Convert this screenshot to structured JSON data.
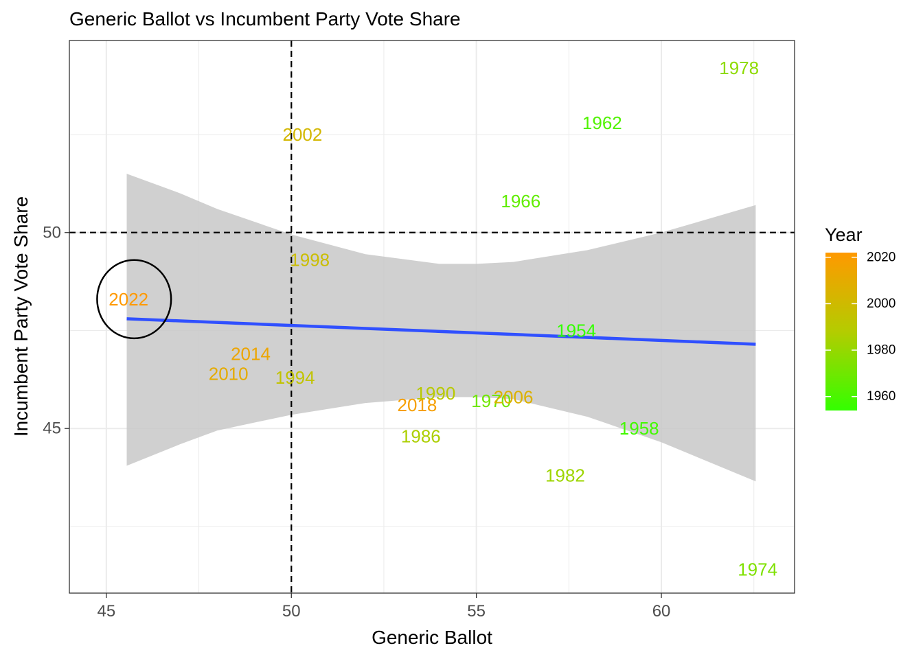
{
  "chart_data": {
    "type": "scatter",
    "title": "Generic Ballot vs Incumbent Party Vote Share",
    "xlabel": "Generic Ballot",
    "ylabel": "Incumbent Party Vote Share",
    "xlim": [
      44,
      63.6
    ],
    "ylim": [
      40.8,
      54.9
    ],
    "x_ticks": [
      45,
      50,
      55,
      60
    ],
    "y_ticks": [
      45,
      50
    ],
    "grid": true,
    "reference_lines": {
      "x": 50,
      "y": 50,
      "style": "dashed"
    },
    "points": [
      {
        "label": "2022",
        "x": 45.6,
        "y": 48.3,
        "year": 2022
      },
      {
        "label": "2014",
        "x": 48.9,
        "y": 46.9,
        "year": 2014
      },
      {
        "label": "2010",
        "x": 48.3,
        "y": 46.4,
        "year": 2010
      },
      {
        "label": "1994",
        "x": 50.1,
        "y": 46.3,
        "year": 1994
      },
      {
        "label": "2002",
        "x": 50.3,
        "y": 52.5,
        "year": 2002
      },
      {
        "label": "1998",
        "x": 50.5,
        "y": 49.3,
        "year": 1998
      },
      {
        "label": "2018",
        "x": 53.4,
        "y": 45.6,
        "year": 2018
      },
      {
        "label": "1990",
        "x": 53.9,
        "y": 45.9,
        "year": 1990
      },
      {
        "label": "1986",
        "x": 53.5,
        "y": 44.8,
        "year": 1986
      },
      {
        "label": "1970",
        "x": 55.4,
        "y": 45.7,
        "year": 1970
      },
      {
        "label": "2006",
        "x": 56.0,
        "y": 45.8,
        "year": 2006
      },
      {
        "label": "1966",
        "x": 56.2,
        "y": 50.8,
        "year": 1966
      },
      {
        "label": "1954",
        "x": 57.7,
        "y": 47.5,
        "year": 1954
      },
      {
        "label": "1982",
        "x": 57.4,
        "y": 43.8,
        "year": 1982
      },
      {
        "label": "1962",
        "x": 58.4,
        "y": 52.8,
        "year": 1962
      },
      {
        "label": "1958",
        "x": 59.4,
        "y": 45.0,
        "year": 1958
      },
      {
        "label": "1978",
        "x": 62.1,
        "y": 54.2,
        "year": 1978
      },
      {
        "label": "1974",
        "x": 62.6,
        "y": 41.4,
        "year": 1974
      }
    ],
    "trend_line": {
      "color": "#3050ff",
      "x": [
        45.55,
        62.55
      ],
      "y": [
        47.8,
        47.15
      ]
    },
    "confidence_band": {
      "color": "#c8c8c8",
      "x": [
        45.55,
        47,
        48,
        50,
        52,
        54,
        55,
        56,
        58,
        60,
        62.55
      ],
      "upper": [
        51.5,
        51.0,
        50.6,
        49.95,
        49.45,
        49.2,
        49.2,
        49.25,
        49.55,
        50.0,
        50.7
      ],
      "lower": [
        44.05,
        44.6,
        44.95,
        45.35,
        45.65,
        45.8,
        45.8,
        45.75,
        45.3,
        44.65,
        43.65
      ]
    },
    "highlight": {
      "x": 45.75,
      "y": 48.3,
      "radius_x": 2.0,
      "radius_y": 1.0,
      "color": "#000000"
    },
    "legend": {
      "title": "Year",
      "placement": "right",
      "type": "colorbar",
      "min": 1954,
      "max": 2022,
      "ticks": [
        1960,
        1980,
        2000,
        2020
      ],
      "color_low": "#33ff00",
      "color_mid": "#b4cc00",
      "color_high": "#ff9900"
    }
  }
}
